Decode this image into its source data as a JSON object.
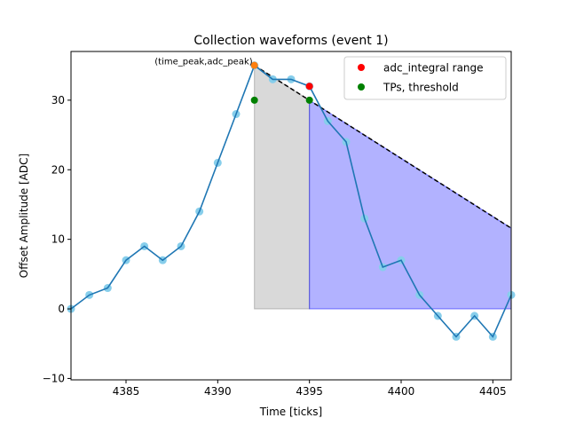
{
  "chart_data": {
    "type": "line",
    "title": "Collection waveforms (event 1)",
    "xlabel": "Time [ticks]",
    "ylabel": "Offset Amplitude [ADC]",
    "xlim": [
      4382,
      4406
    ],
    "ylim": [
      -10.2,
      37
    ],
    "xticks": [
      4385,
      4390,
      4395,
      4400,
      4405
    ],
    "yticks": [
      -10,
      0,
      10,
      20,
      30
    ],
    "grid": false,
    "legend_position": "top-right",
    "series": [
      {
        "kind": "waveform",
        "color": "#1f77b4",
        "marker_color": "#87ceeb",
        "x": [
          4382,
          4383,
          4384,
          4385,
          4386,
          4387,
          4388,
          4389,
          4390,
          4391,
          4392,
          4393,
          4394,
          4395,
          4396,
          4397,
          4398,
          4399,
          4400,
          4401,
          4402,
          4403,
          4404,
          4405,
          4406
        ],
        "y": [
          0,
          2,
          3,
          7,
          9,
          7,
          9,
          14,
          21,
          28,
          35,
          33,
          33,
          32,
          27,
          24,
          13,
          6,
          7,
          2,
          -1,
          -4,
          -1,
          -4,
          2
        ]
      },
      {
        "name": "adc_integral range",
        "kind": "points",
        "color": "#ff0000",
        "x": [
          4395
        ],
        "y": [
          32
        ]
      },
      {
        "name": "TPs, threshold",
        "kind": "points",
        "color": "#008000",
        "x": [
          4392,
          4395
        ],
        "y": [
          30,
          30
        ]
      }
    ],
    "peak": {
      "x": 4392,
      "y": 35,
      "color": "#ff7f0e"
    },
    "decay_line": {
      "x": [
        4392,
        4406
      ],
      "y": [
        35,
        11.6
      ],
      "color": "#000000",
      "style": "dashed"
    },
    "shaded_regions": [
      {
        "x_start": 4392,
        "x_end": 4395,
        "color": "#808080"
      },
      {
        "x_start": 4395,
        "x_end": 4406,
        "color": "#0000ff"
      }
    ],
    "annotations": [
      {
        "text": "(time_peak,adc_peak)",
        "x": 4392,
        "y": 35
      }
    ]
  }
}
